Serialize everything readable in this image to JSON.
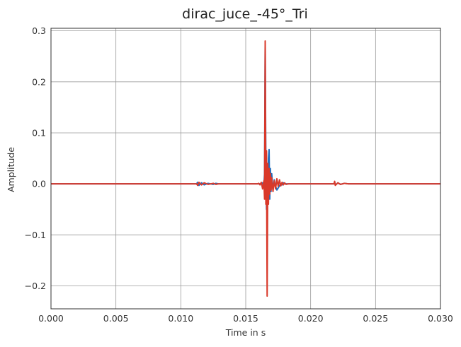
{
  "chart_data": {
    "type": "line",
    "title": "dirac_juce_-45°_Tri",
    "xlabel": "Time in s",
    "ylabel": "Amplitude",
    "xlim": [
      0.0,
      0.03
    ],
    "ylim": [
      -0.245,
      0.305
    ],
    "xticks": [
      0.0,
      0.005,
      0.01,
      0.015,
      0.02,
      0.025,
      0.03
    ],
    "xtick_labels": [
      "0.000",
      "0.005",
      "0.010",
      "0.015",
      "0.020",
      "0.025",
      "0.030"
    ],
    "yticks": [
      -0.2,
      -0.1,
      0.0,
      0.1,
      0.2,
      0.3
    ],
    "ytick_labels": [
      "−0.2",
      "−0.1",
      "0.0",
      "0.1",
      "0.2",
      "0.3"
    ],
    "grid": true,
    "colors": {
      "series_blue": "#1f6fc0",
      "series_red": "#d9392a",
      "grid": "#9a9a9a",
      "axes": "#333333"
    },
    "series": [
      {
        "color": "#1f6fc0",
        "x": [
          0.0,
          0.0112,
          0.0113,
          0.0114,
          0.0116,
          0.0118,
          0.0121,
          0.0125,
          0.0127,
          0.0129,
          0.016,
          0.0162,
          0.0163,
          0.0164,
          0.01645,
          0.0165,
          0.01655,
          0.0166,
          0.01665,
          0.0167,
          0.01675,
          0.0168,
          0.01685,
          0.0169,
          0.01695,
          0.017,
          0.0171,
          0.0172,
          0.0173,
          0.0174,
          0.0175,
          0.0176,
          0.0177,
          0.0178,
          0.0179,
          0.018,
          0.0182,
          0.0185,
          0.0218,
          0.02185,
          0.0219,
          0.0221,
          0.0223,
          0.0226,
          0.0229,
          0.03
        ],
        "y": [
          0.0,
          0.0,
          0.003,
          -0.003,
          0.002,
          -0.002,
          0.001,
          -0.001,
          0.001,
          0.0,
          0.0,
          0.0,
          0.002,
          -0.004,
          0.02,
          0.27,
          0.04,
          -0.05,
          0.04,
          -0.03,
          0.05,
          0.067,
          -0.03,
          0.03,
          -0.015,
          0.02,
          -0.012,
          0.008,
          -0.005,
          -0.012,
          -0.008,
          -0.004,
          0.0,
          -0.002,
          0.002,
          0.0,
          0.0,
          0.0,
          0.0,
          0.003,
          -0.002,
          0.002,
          -0.001,
          0.001,
          0.0,
          0.0
        ]
      },
      {
        "color": "#d9392a",
        "x": [
          0.0,
          0.0112,
          0.0113,
          0.0114,
          0.0116,
          0.0118,
          0.0121,
          0.0125,
          0.0127,
          0.0129,
          0.0159,
          0.016,
          0.0161,
          0.0162,
          0.0163,
          0.0164,
          0.01645,
          0.0165,
          0.01655,
          0.0166,
          0.01665,
          0.0167,
          0.01675,
          0.0168,
          0.01685,
          0.0169,
          0.01695,
          0.017,
          0.0171,
          0.0172,
          0.0173,
          0.0174,
          0.0175,
          0.0176,
          0.0177,
          0.0178,
          0.0179,
          0.018,
          0.0181,
          0.0183,
          0.0186,
          0.0218,
          0.02185,
          0.0219,
          0.0221,
          0.0223,
          0.0226,
          0.0229,
          0.03
        ],
        "y": [
          0.0,
          0.0,
          -0.003,
          0.003,
          -0.002,
          0.002,
          -0.001,
          0.001,
          -0.001,
          0.0,
          0.0,
          0.001,
          -0.002,
          0.003,
          -0.01,
          0.006,
          -0.03,
          0.28,
          -0.04,
          0.065,
          -0.22,
          0.04,
          -0.04,
          0.03,
          -0.02,
          0.02,
          -0.012,
          0.012,
          -0.015,
          0.006,
          -0.01,
          0.01,
          -0.005,
          0.008,
          -0.004,
          0.003,
          -0.002,
          0.002,
          -0.001,
          0.0,
          0.0,
          0.0,
          0.005,
          -0.003,
          0.002,
          -0.001,
          0.001,
          0.0,
          0.0
        ]
      }
    ]
  }
}
